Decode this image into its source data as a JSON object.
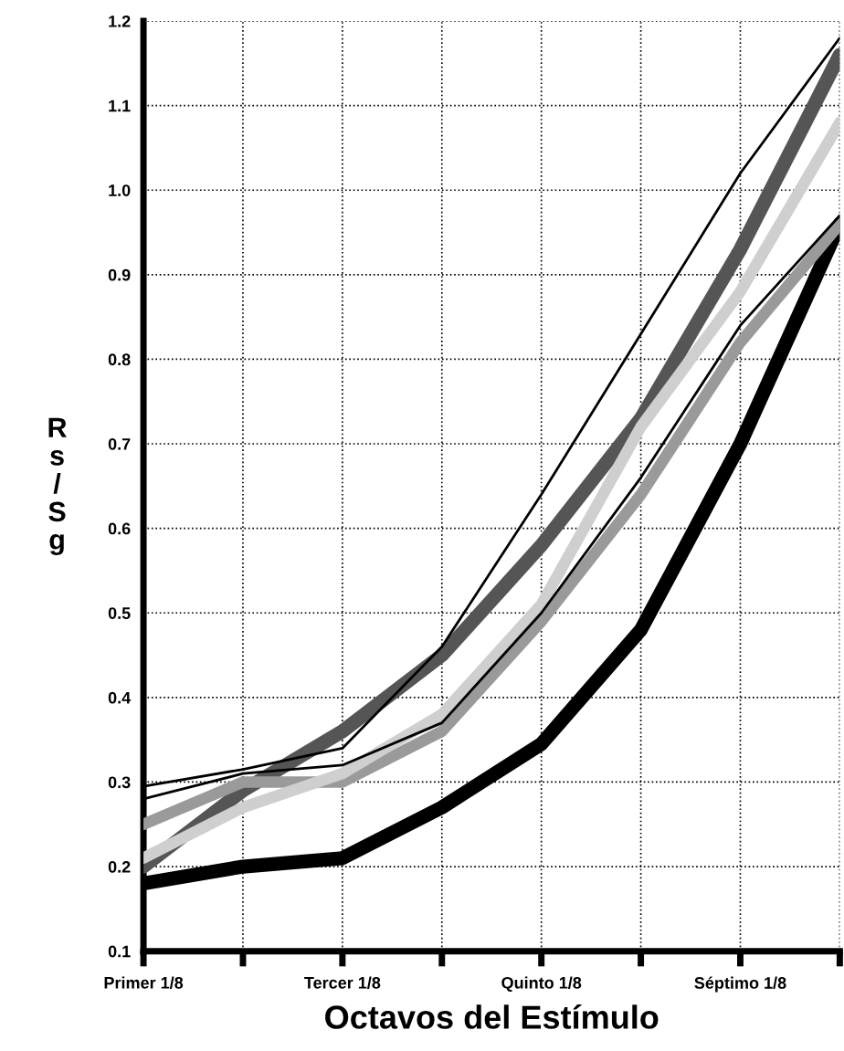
{
  "chart_data": {
    "type": "line",
    "xlabel": "Octavos del Estímulo",
    "ylabel": "Rs/Sg",
    "categories": [
      "Primer 1/8",
      null,
      "Tercer 1/8",
      null,
      "Quinto 1/8",
      null,
      "Séptimo 1/8",
      null
    ],
    "series": [
      {
        "color": "#000000",
        "values": [
          0.295,
          0.315,
          0.34,
          0.46,
          0.64,
          0.83,
          1.02,
          1.18
        ]
      },
      {
        "color": "#000000",
        "values": [
          0.28,
          0.31,
          0.32,
          0.37,
          0.5,
          0.66,
          0.84,
          0.97
        ]
      },
      {
        "color": "#9a9a9a",
        "values": [
          0.25,
          0.3,
          0.3,
          0.36,
          0.49,
          0.64,
          0.82,
          0.96
        ]
      },
      {
        "color": "#555555",
        "values": [
          0.2,
          0.29,
          0.36,
          0.45,
          0.58,
          0.73,
          0.93,
          1.16
        ]
      },
      {
        "color": "#cfcfcf",
        "values": [
          0.21,
          0.27,
          0.31,
          0.38,
          0.51,
          0.72,
          0.88,
          1.08
        ]
      },
      {
        "color": "#000000",
        "values": [
          0.18,
          0.2,
          0.21,
          0.27,
          0.345,
          0.48,
          0.7,
          0.96
        ]
      }
    ],
    "ylim": [
      0.1,
      1.2
    ],
    "yticks": [
      0.1,
      0.2,
      0.3,
      0.4,
      0.5,
      0.6,
      0.7,
      0.8,
      0.9,
      {
        "value": 1.0,
        "label": "1.0"
      },
      1.1,
      1.2
    ],
    "grid": true,
    "line_style": "solid",
    "marker": "none"
  }
}
